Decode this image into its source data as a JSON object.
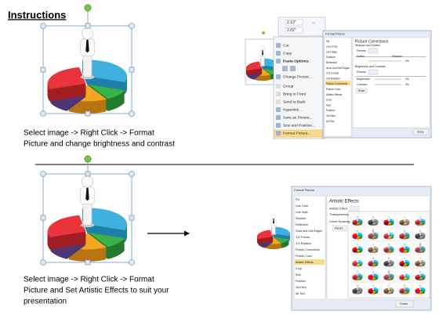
{
  "header": {
    "title": "Instructions"
  },
  "steps": [
    {
      "caption": [
        "Select image -> Right Click -> Format",
        "Picture and change brightness and contrast"
      ]
    },
    {
      "caption": [
        "Select image -> Right Click -> Format",
        "Picture and Set Artistic Effects to suit your",
        "presentation"
      ]
    }
  ],
  "context_menu": {
    "size_fields": [
      "2.13\"",
      "2.02\""
    ],
    "items": [
      "Cut",
      "Copy",
      "Paste Options:",
      "Change Picture...",
      "Group",
      "Bring to Front",
      "Send to Back",
      "Hyperlink...",
      "Save as Picture...",
      "Size and Position...",
      "Format Picture..."
    ]
  },
  "dialog_corrections": {
    "title": "Format Picture",
    "nav": [
      "Fill",
      "Line Color",
      "Line Style",
      "Shadow",
      "Reflection",
      "Glow and Soft Edges",
      "3-D Format",
      "3-D Rotation",
      "Picture Corrections",
      "Picture Color",
      "Artistic Effects",
      "Crop",
      "Size",
      "Position",
      "Text Box",
      "Alt Text"
    ],
    "heading": "Picture Corrections",
    "section_1": "Sharpen and Soften",
    "presets_1": "Presets:",
    "soften": "Soften",
    "sharpen": "Sharpen",
    "sharpen_value": "0%",
    "section_2": "Brightness and Contrast",
    "presets_2": "Presets:",
    "brightness": "Brightness:",
    "brightness_value": "0%",
    "contrast": "Contrast:",
    "contrast_value": "0%",
    "reset": "Reset",
    "close": "Close"
  },
  "dialog_artistic": {
    "title": "Format Picture",
    "nav": [
      "Fill",
      "Line Color",
      "Line Style",
      "Shadow",
      "Reflection",
      "Glow and Soft Edges",
      "3-D Format",
      "3-D Rotation",
      "Picture Corrections",
      "Picture Color",
      "Artistic Effects",
      "Crop",
      "Size",
      "Position",
      "Text Box",
      "Alt Text"
    ],
    "heading": "Artistic Effects",
    "artistic_effect": "Artistic Effect:",
    "transparency": "Transparency:",
    "crack_spacing": "Crack Spacing:",
    "reset": "Reset",
    "close": "Close"
  }
}
